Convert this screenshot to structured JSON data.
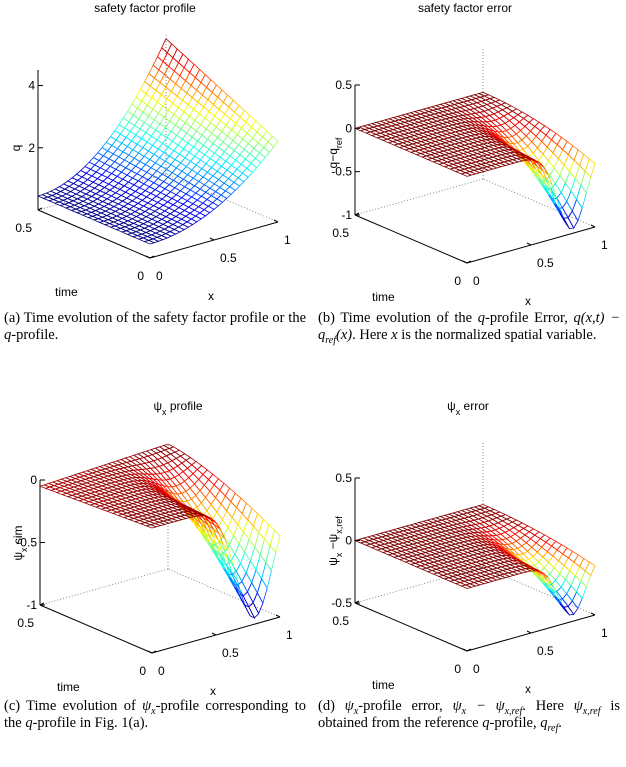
{
  "panels": [
    {
      "title": [
        {
          "t": "safety factor profile"
        }
      ],
      "zlabel": [
        {
          "t": "q"
        }
      ],
      "xlabel": "x",
      "tlabel": "time",
      "zlim": [
        0,
        4.5
      ],
      "zticks": [
        2,
        4
      ],
      "tticks": [
        0,
        0.5
      ],
      "xticks": [
        0,
        0.5,
        1
      ],
      "caption": [
        {
          "t": "(a) Time evolution of the safety factor profile or the "
        },
        {
          "t": "q",
          "i": true
        },
        {
          "t": "-profile."
        }
      ]
    },
    {
      "title": [
        {
          "t": "safety factor error"
        }
      ],
      "zlabel": [
        {
          "t": "q−q"
        },
        {
          "t": "ref",
          "sub": true
        }
      ],
      "xlabel": "x",
      "tlabel": "time",
      "zlim": [
        -1,
        0.5
      ],
      "zticks": [
        -1,
        -0.5,
        0,
        0.5
      ],
      "tticks": [
        0,
        0.5
      ],
      "xticks": [
        0,
        0.5,
        1
      ],
      "caption": [
        {
          "t": "(b) Time evolution of the "
        },
        {
          "t": "q",
          "i": true
        },
        {
          "t": "-profile Error, "
        },
        {
          "t": "q(x,t) − q",
          "i": true
        },
        {
          "t": "ref",
          "i": true,
          "sub": true
        },
        {
          "t": "(x)",
          "i": true
        },
        {
          "t": ". Here "
        },
        {
          "t": "x",
          "i": true
        },
        {
          "t": " is the normalized spatial variable."
        }
      ]
    },
    {
      "title": [
        {
          "t": "ψ"
        },
        {
          "t": "x",
          "sub": true
        },
        {
          "t": " profile"
        }
      ],
      "zlabel": [
        {
          "t": "ψ"
        },
        {
          "t": "x",
          "sub": true
        },
        {
          "t": " sim"
        }
      ],
      "xlabel": "x",
      "tlabel": "time",
      "zlim": [
        -1,
        0
      ],
      "zticks": [
        -1,
        -0.5,
        0
      ],
      "tticks": [
        0,
        0.5
      ],
      "xticks": [
        0,
        0.5,
        1
      ],
      "caption": [
        {
          "t": "(c) Time evolution of "
        },
        {
          "t": "ψ",
          "i": true
        },
        {
          "t": "x",
          "i": true,
          "sub": true
        },
        {
          "t": "-profile corresponding to the "
        },
        {
          "t": "q",
          "i": true
        },
        {
          "t": "-profile in Fig. 1(a)."
        }
      ]
    },
    {
      "title": [
        {
          "t": "ψ"
        },
        {
          "t": "x",
          "sub": true
        },
        {
          "t": " error"
        }
      ],
      "zlabel": [
        {
          "t": "ψ"
        },
        {
          "t": "x",
          "sub": true
        },
        {
          "t": " −ψ"
        },
        {
          "t": "x,ref",
          "sub": true
        }
      ],
      "xlabel": "x",
      "tlabel": "time",
      "zlim": [
        -0.5,
        0.5
      ],
      "zticks": [
        -0.5,
        0,
        0.5
      ],
      "tticks": [
        0,
        0.5
      ],
      "xticks": [
        0,
        0.5,
        1
      ],
      "caption": [
        {
          "t": "(d) "
        },
        {
          "t": "ψ",
          "i": true
        },
        {
          "t": "x",
          "i": true,
          "sub": true
        },
        {
          "t": "-profile error, "
        },
        {
          "t": "ψ",
          "i": true
        },
        {
          "t": "x",
          "i": true,
          "sub": true
        },
        {
          "t": " − ψ",
          "i": true
        },
        {
          "t": "x,ref",
          "i": true,
          "sub": true
        },
        {
          "t": ". Here "
        },
        {
          "t": "ψ",
          "i": true
        },
        {
          "t": "x,ref",
          "i": true,
          "sub": true
        },
        {
          "t": " is obtained from the reference "
        },
        {
          "t": "q",
          "i": true
        },
        {
          "t": "-profile, "
        },
        {
          "t": "q",
          "i": true
        },
        {
          "t": "ref",
          "i": true,
          "sub": true
        },
        {
          "t": "."
        }
      ]
    }
  ]
}
